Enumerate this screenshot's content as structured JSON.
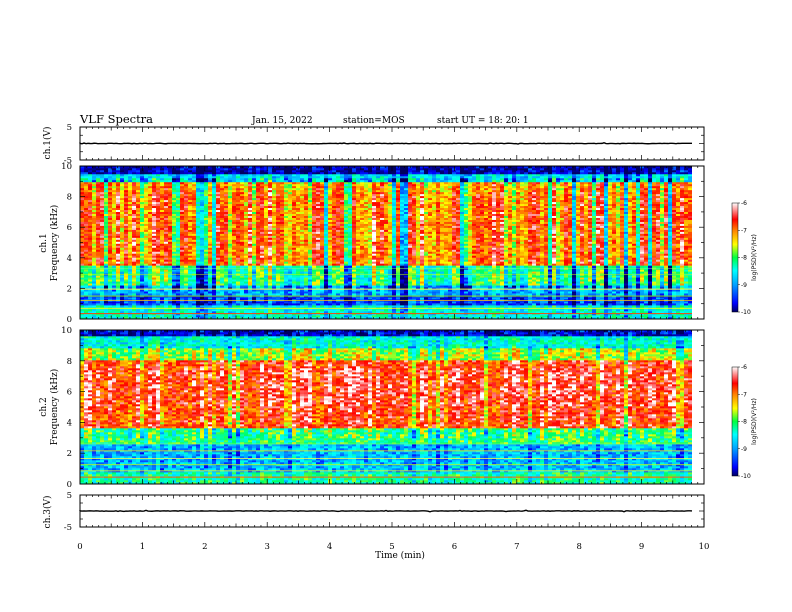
{
  "header": {
    "title": "VLF Spectra",
    "date": "Jan. 15, 2022",
    "station": "station=MOS",
    "start": "start  UT =   18: 20: 1"
  },
  "chart_data": [
    {
      "type": "line",
      "panel": "ch1-waveform",
      "ylabel": "ch.1(V)",
      "ylim": [
        -5,
        5
      ],
      "yticks": [
        "5",
        "",
        "-5"
      ],
      "xlim": [
        0,
        10
      ],
      "signal_level": 0
    },
    {
      "type": "heatmap",
      "panel": "ch1-spectrogram",
      "ylabel": "ch.1\nFrequency (kHz)",
      "ylim": [
        0,
        10
      ],
      "yticks": [
        "0",
        "2",
        "4",
        "6",
        "8",
        "10"
      ],
      "xlim": [
        0,
        9.8
      ],
      "colorbar": {
        "label": "log(PSD)(V²/Hz)",
        "range": [
          -10,
          -6
        ],
        "ticks": [
          "-6",
          "-7",
          "-8",
          "-9",
          "-10"
        ]
      },
      "dominant_band_khz": [
        1.5,
        9
      ]
    },
    {
      "type": "heatmap",
      "panel": "ch2-spectrogram",
      "ylabel": "ch.2\nFrequency (kHz)",
      "ylim": [
        0,
        10
      ],
      "yticks": [
        "0",
        "2",
        "4",
        "6",
        "8",
        "10"
      ],
      "xlim": [
        0,
        9.8
      ],
      "colorbar": {
        "label": "log(PSD)(V²/Hz)",
        "range": [
          -10,
          -6
        ],
        "ticks": [
          "-6",
          "-7",
          "-8",
          "-9",
          "-10"
        ]
      },
      "dominant_band_khz": [
        3.5,
        8
      ]
    },
    {
      "type": "line",
      "panel": "ch3-waveform",
      "ylabel": "ch.3(V)",
      "ylim": [
        -5,
        5
      ],
      "yticks": [
        "5",
        "",
        "-5"
      ],
      "xlim": [
        0,
        10
      ],
      "signal_level": 0,
      "xlabel": "Time  (min)",
      "xticks": [
        "0",
        "1",
        "2",
        "3",
        "4",
        "5",
        "6",
        "7",
        "8",
        "9",
        "10"
      ]
    }
  ],
  "colors": {
    "colormap": [
      "#000060",
      "#0000ff",
      "#00a0ff",
      "#00ffff",
      "#00ff60",
      "#ffff00",
      "#ff8000",
      "#ff0000",
      "#ffffff"
    ]
  }
}
